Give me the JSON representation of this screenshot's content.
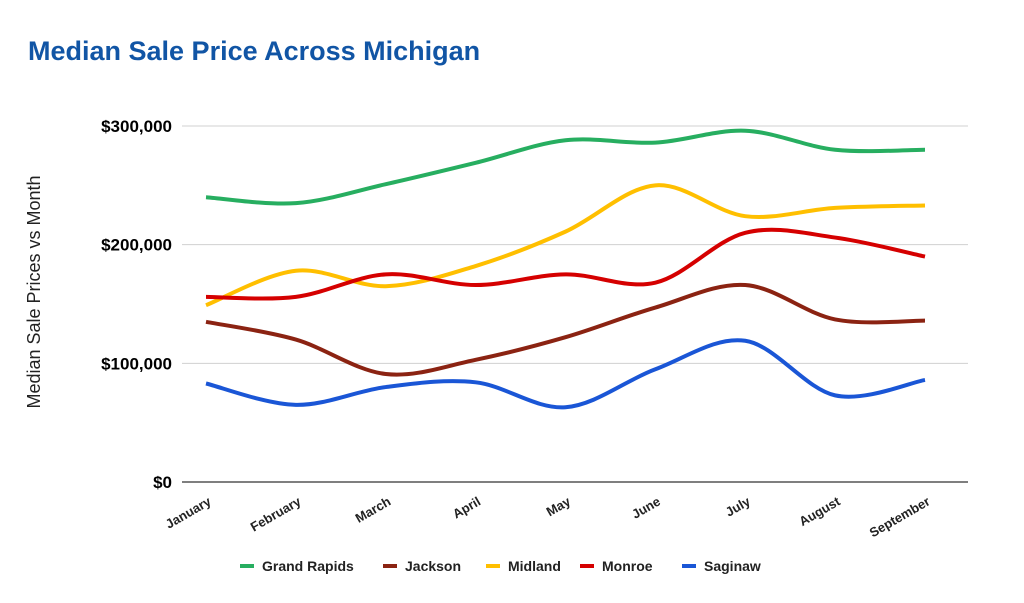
{
  "chart_data": {
    "type": "line",
    "title": "Median Sale Price Across Michigan",
    "xlabel": "",
    "ylabel": "Median Sale Prices vs Month",
    "ylim": [
      0,
      300000
    ],
    "yticks": [
      0,
      100000,
      200000,
      300000
    ],
    "ytick_labels": [
      "$0",
      "$100,000",
      "$200,000",
      "$300,000"
    ],
    "grid": true,
    "legend_position": "bottom",
    "categories": [
      "January",
      "February",
      "March",
      "April",
      "May",
      "June",
      "July",
      "August",
      "September"
    ],
    "series": [
      {
        "name": "Grand Rapids",
        "color": "#27ae60",
        "values": [
          240000,
          235000,
          251000,
          269000,
          288000,
          286000,
          296000,
          280000,
          280000
        ]
      },
      {
        "name": "Jackson",
        "color": "#8b2312",
        "values": [
          135000,
          120000,
          91000,
          103000,
          122000,
          147000,
          166000,
          137000,
          136000
        ]
      },
      {
        "name": "Midland",
        "color": "#ffbf00",
        "values": [
          149000,
          178000,
          165000,
          182000,
          211000,
          250000,
          224000,
          231000,
          233000
        ]
      },
      {
        "name": "Monroe",
        "color": "#d50000",
        "values": [
          156000,
          156000,
          175000,
          166000,
          175000,
          168000,
          210000,
          206000,
          190000
        ]
      },
      {
        "name": "Saginaw",
        "color": "#1a56d6",
        "values": [
          83000,
          65000,
          80000,
          84000,
          63000,
          95000,
          119000,
          73000,
          86000
        ]
      }
    ]
  }
}
